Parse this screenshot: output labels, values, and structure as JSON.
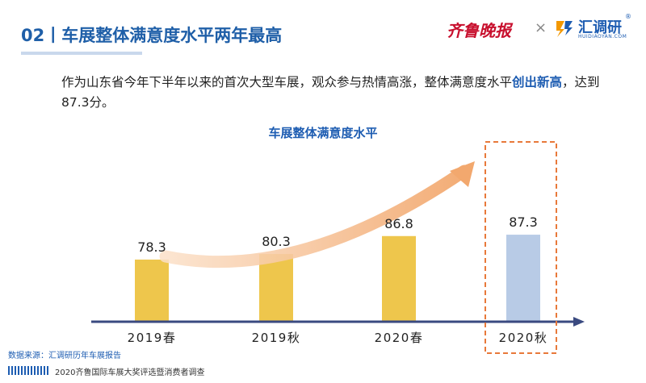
{
  "header": {
    "title": "02丨车展整体满意度水平两年最高",
    "logo_qlwb": "齐鲁晚报",
    "logo_times": "×",
    "logo_hdy_name": "汇调研",
    "logo_hdy_sub": "HUIDIAOYAN.COM",
    "logo_hdy_mark": "®"
  },
  "intro": {
    "before": "作为山东省今年下半年以来的首次大型车展，观众参与热情高涨，整体满意度水平",
    "highlight": "创出新高",
    "after": "，达到87.3分。"
  },
  "chart_data": {
    "type": "bar",
    "title": "车展整体满意度水平",
    "categories": [
      "2019春",
      "2019秋",
      "2020春",
      "2020秋"
    ],
    "values": [
      78.3,
      80.3,
      86.8,
      87.3
    ],
    "xlabel": "",
    "ylabel": "",
    "highlight_index": 3,
    "colors": {
      "bar": "#eec64c",
      "bar_highlight": "#b8cbe6",
      "axis": "#3a4a80",
      "highlight_box": "#e8793a",
      "trend_arrow": "#f2b07f"
    }
  },
  "footer": {
    "source": "数据来源：汇调研历年车展报告",
    "note": "2020齐鲁国际车展大奖评选暨消费者调查"
  }
}
